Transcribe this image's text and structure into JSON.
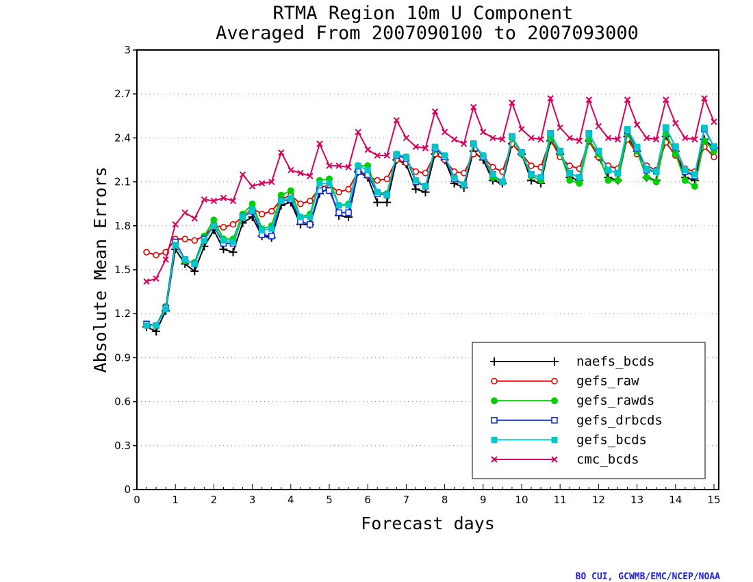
{
  "chart_data": {
    "type": "line",
    "title": "RTMA Region 10m U Component",
    "subtitle": "Averaged From 2007090100 to 2007093000",
    "xlabel": "Forecast days",
    "ylabel": "Absolute Mean Errors",
    "xlim": [
      0,
      15.125
    ],
    "ylim": [
      0,
      3
    ],
    "x_ticks": [
      "0",
      "1",
      "2",
      "3",
      "4",
      "5",
      "6",
      "7",
      "8",
      "9",
      "10",
      "11",
      "12",
      "13",
      "14",
      "15"
    ],
    "y_ticks": [
      "0",
      "0.3",
      "0.6",
      "0.9",
      "1.2",
      "1.5",
      "1.8",
      "2.1",
      "2.4",
      "2.7",
      "3"
    ],
    "grid": true,
    "legend_position": "bottom-right",
    "credit": "BO CUI, GCWMB/EMC/NCEP/NOAA",
    "x": [
      0.25,
      0.5,
      0.75,
      1.0,
      1.25,
      1.5,
      1.75,
      2.0,
      2.25,
      2.5,
      2.75,
      3.0,
      3.25,
      3.5,
      3.75,
      4.0,
      4.25,
      4.5,
      4.75,
      5.0,
      5.25,
      5.5,
      5.75,
      6.0,
      6.25,
      6.5,
      6.75,
      7.0,
      7.25,
      7.5,
      7.75,
      8.0,
      8.25,
      8.5,
      8.75,
      9.0,
      9.25,
      9.5,
      9.75,
      10.0,
      10.25,
      10.5,
      10.75,
      11.0,
      11.25,
      11.5,
      11.75,
      12.0,
      12.25,
      12.5,
      12.75,
      13.0,
      13.25,
      13.5,
      13.75,
      14.0,
      14.25,
      14.5,
      14.75,
      15.0
    ],
    "series": [
      {
        "name": "naefs_bcds",
        "color": "#000000",
        "marker": "plus",
        "values": [
          1.11,
          1.08,
          1.22,
          1.64,
          1.54,
          1.49,
          1.66,
          1.77,
          1.64,
          1.62,
          1.82,
          1.86,
          1.73,
          1.72,
          1.94,
          1.96,
          1.81,
          1.81,
          2.02,
          2.06,
          1.87,
          1.86,
          2.17,
          2.13,
          1.96,
          1.96,
          2.25,
          2.22,
          2.05,
          2.03,
          2.29,
          2.25,
          2.09,
          2.06,
          2.31,
          2.25,
          2.11,
          2.09,
          2.36,
          2.29,
          2.11,
          2.09,
          2.38,
          2.29,
          2.13,
          2.11,
          2.38,
          2.27,
          2.13,
          2.11,
          2.41,
          2.31,
          2.13,
          2.11,
          2.41,
          2.31,
          2.13,
          2.11,
          2.39,
          2.33
        ]
      },
      {
        "name": "gefs_raw",
        "color": "#e00000",
        "marker": "circle",
        "values": [
          1.62,
          1.6,
          1.62,
          1.71,
          1.71,
          1.7,
          1.73,
          1.8,
          1.79,
          1.81,
          1.86,
          1.92,
          1.88,
          1.9,
          1.98,
          2.01,
          1.95,
          1.97,
          2.06,
          2.08,
          2.03,
          2.05,
          2.17,
          2.14,
          2.11,
          2.12,
          2.25,
          2.23,
          2.17,
          2.16,
          2.29,
          2.25,
          2.17,
          2.16,
          2.29,
          2.27,
          2.2,
          2.17,
          2.36,
          2.29,
          2.21,
          2.2,
          2.39,
          2.27,
          2.21,
          2.19,
          2.38,
          2.27,
          2.21,
          2.19,
          2.39,
          2.29,
          2.21,
          2.18,
          2.37,
          2.28,
          2.19,
          2.17,
          2.34,
          2.27
        ]
      },
      {
        "name": "gefs_rawds",
        "color": "#00d000",
        "marker": "disc",
        "values": [
          1.13,
          1.12,
          1.25,
          1.69,
          1.56,
          1.55,
          1.73,
          1.84,
          1.71,
          1.71,
          1.88,
          1.95,
          1.78,
          1.8,
          2.01,
          2.04,
          1.86,
          1.88,
          2.11,
          2.12,
          1.94,
          1.95,
          2.21,
          2.21,
          2.03,
          2.02,
          2.29,
          2.27,
          2.11,
          2.07,
          2.32,
          2.28,
          2.12,
          2.08,
          2.36,
          2.28,
          2.13,
          2.1,
          2.4,
          2.29,
          2.14,
          2.11,
          2.4,
          2.3,
          2.11,
          2.09,
          2.39,
          2.29,
          2.11,
          2.11,
          2.43,
          2.31,
          2.13,
          2.1,
          2.43,
          2.29,
          2.11,
          2.07,
          2.38,
          2.31
        ]
      },
      {
        "name": "gefs_drbcds",
        "color": "#1030e0",
        "marker": "square-open",
        "values": [
          1.13,
          1.12,
          1.24,
          1.69,
          1.57,
          1.54,
          1.71,
          1.8,
          1.68,
          1.68,
          1.86,
          1.9,
          1.74,
          1.73,
          1.97,
          1.98,
          1.83,
          1.81,
          2.04,
          2.04,
          1.89,
          1.89,
          2.17,
          2.15,
          2.02,
          2.01,
          2.28,
          2.26,
          2.1,
          2.07,
          2.33,
          2.27,
          2.12,
          2.08,
          2.36,
          2.27,
          2.15,
          2.1,
          2.41,
          2.3,
          2.15,
          2.13,
          2.43,
          2.31,
          2.16,
          2.13,
          2.43,
          2.31,
          2.18,
          2.16,
          2.45,
          2.33,
          2.18,
          2.17,
          2.47,
          2.34,
          2.17,
          2.14,
          2.46,
          2.34
        ]
      },
      {
        "name": "gefs_bcds",
        "color": "#00c8c8",
        "marker": "square",
        "values": [
          1.12,
          1.12,
          1.23,
          1.67,
          1.57,
          1.54,
          1.7,
          1.8,
          1.7,
          1.69,
          1.86,
          1.91,
          1.77,
          1.78,
          1.97,
          1.99,
          1.86,
          1.86,
          2.09,
          2.09,
          1.94,
          1.94,
          2.21,
          2.18,
          2.03,
          2.01,
          2.29,
          2.27,
          2.11,
          2.07,
          2.34,
          2.28,
          2.13,
          2.08,
          2.36,
          2.28,
          2.15,
          2.1,
          2.41,
          2.3,
          2.15,
          2.13,
          2.43,
          2.31,
          2.16,
          2.13,
          2.43,
          2.31,
          2.18,
          2.16,
          2.46,
          2.34,
          2.19,
          2.17,
          2.47,
          2.34,
          2.18,
          2.15,
          2.47,
          2.34
        ]
      },
      {
        "name": "cmc_bcds",
        "color": "#d8005c",
        "marker": "cross",
        "values": [
          1.42,
          1.44,
          1.57,
          1.81,
          1.89,
          1.85,
          1.98,
          1.97,
          1.99,
          1.97,
          2.15,
          2.07,
          2.09,
          2.1,
          2.3,
          2.18,
          2.16,
          2.14,
          2.36,
          2.21,
          2.21,
          2.2,
          2.44,
          2.32,
          2.28,
          2.28,
          2.52,
          2.4,
          2.34,
          2.33,
          2.58,
          2.44,
          2.39,
          2.36,
          2.61,
          2.44,
          2.4,
          2.39,
          2.64,
          2.46,
          2.4,
          2.39,
          2.67,
          2.47,
          2.4,
          2.38,
          2.66,
          2.48,
          2.4,
          2.39,
          2.66,
          2.49,
          2.4,
          2.39,
          2.66,
          2.5,
          2.4,
          2.39,
          2.67,
          2.51
        ]
      }
    ]
  }
}
